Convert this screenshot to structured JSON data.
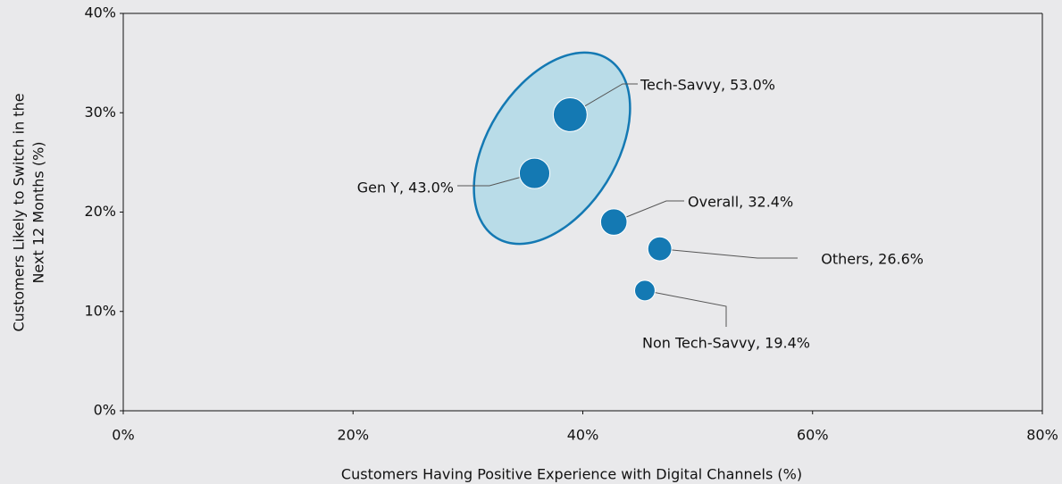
{
  "chart_data": {
    "type": "bubble",
    "xlabel": "Customers Having Positive Experience with Digital Channels (%)",
    "ylabel": [
      "Customers Likely to Switch in the",
      "Next 12 Months (%)"
    ],
    "series": [
      {
        "name": "Segments",
        "color": "#1479b3",
        "names": [
          "Tech-Savvy",
          "Gen Y",
          "Overall",
          "Others",
          "Non Tech-Savvy"
        ],
        "x": [
          38.9,
          35.8,
          42.7,
          46.7,
          45.4
        ],
        "values": [
          29.8,
          23.9,
          19.0,
          16.3,
          12.1
        ],
        "sizes": [
          53.0,
          43.0,
          32.4,
          26.6,
          19.4
        ],
        "value_labels": [
          "Tech-Savvy, 53.0%",
          "Gen Y, 43.0%",
          "Overall, 32.4%",
          "Others, 26.6%",
          "Non Tech-Savvy, 19.4%"
        ]
      }
    ],
    "xlim": [
      0,
      80
    ],
    "xticks": [
      {
        "value": 0,
        "label": "0%"
      },
      {
        "value": 20,
        "label": "20%"
      },
      {
        "value": 40,
        "label": "40%"
      },
      {
        "value": 60,
        "label": "60%"
      },
      {
        "value": 80,
        "label": "80%"
      }
    ],
    "ylim": [
      0,
      40
    ],
    "yticks": [
      {
        "value": 0,
        "label": "0%"
      },
      {
        "value": 10,
        "label": "10%"
      },
      {
        "value": 20,
        "label": "20%"
      },
      {
        "value": 30,
        "label": "30%"
      },
      {
        "value": 40,
        "label": "40%"
      }
    ],
    "grid": false
  }
}
